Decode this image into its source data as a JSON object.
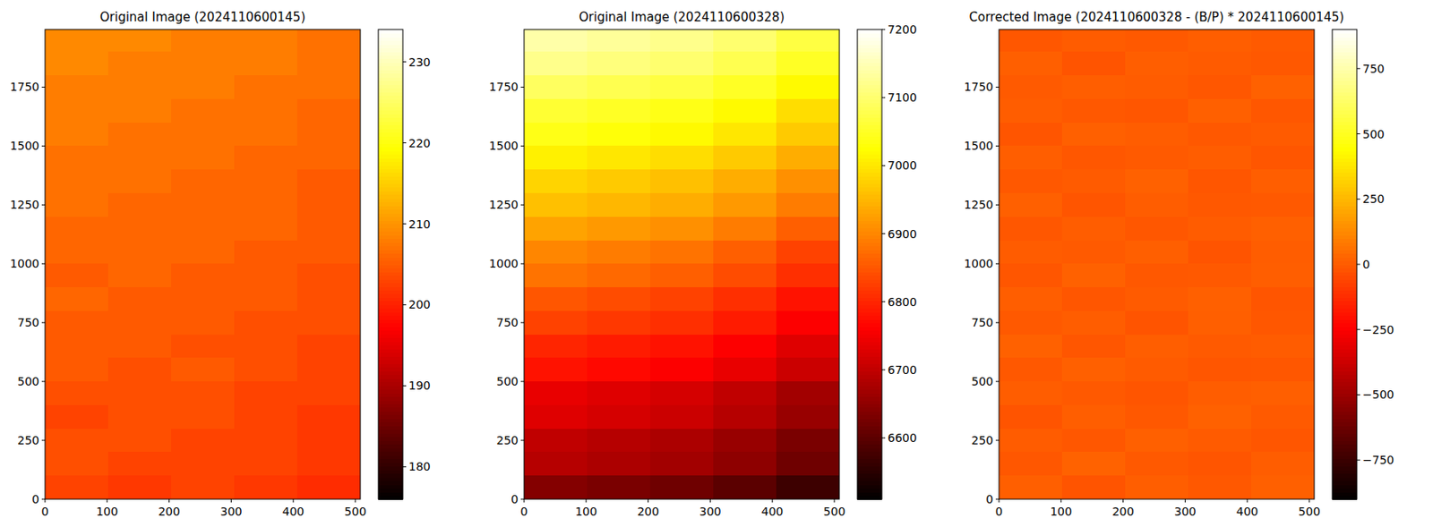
{
  "chart_data": [
    {
      "type": "heatmap",
      "title": "Original Image (2024110600145)",
      "color": "hot",
      "xlim": [
        0,
        508
      ],
      "ylim": [
        0,
        1995
      ],
      "xticks": [
        0,
        100,
        200,
        300,
        400,
        500
      ],
      "yticks": [
        0,
        250,
        500,
        750,
        1000,
        1250,
        1500,
        1750
      ],
      "x_edges": [
        0,
        102,
        203,
        305,
        406,
        508
      ],
      "y_edges": [
        0,
        100,
        200,
        300,
        400,
        500,
        600,
        700,
        800,
        900,
        1000,
        1100,
        1200,
        1300,
        1400,
        1500,
        1600,
        1700,
        1800,
        1900,
        1995
      ],
      "cells": [
        [
          203,
          202,
          203,
          202,
          201
        ],
        [
          204,
          203,
          203,
          203,
          202
        ],
        [
          204,
          204,
          203,
          203,
          202
        ],
        [
          203,
          204,
          204,
          203,
          202
        ],
        [
          204,
          204,
          204,
          203,
          203
        ],
        [
          205,
          204,
          205,
          204,
          203
        ],
        [
          205,
          205,
          204,
          204,
          203
        ],
        [
          205,
          205,
          205,
          204,
          204
        ],
        [
          206,
          205,
          205,
          205,
          204
        ],
        [
          205,
          206,
          205,
          205,
          204
        ],
        [
          206,
          206,
          206,
          205,
          205
        ],
        [
          206,
          206,
          206,
          206,
          205
        ],
        [
          207,
          206,
          206,
          206,
          205
        ],
        [
          207,
          207,
          206,
          206,
          205
        ],
        [
          207,
          207,
          207,
          206,
          206
        ],
        [
          208,
          207,
          207,
          207,
          206
        ],
        [
          208,
          208,
          207,
          207,
          206
        ],
        [
          208,
          208,
          208,
          207,
          207
        ],
        [
          209,
          208,
          208,
          208,
          207
        ],
        [
          209,
          209,
          208,
          208,
          207
        ]
      ],
      "colorbar": {
        "range": [
          176,
          234
        ],
        "ticks": [
          180,
          190,
          200,
          210,
          220,
          230
        ]
      }
    },
    {
      "type": "heatmap",
      "title": "Original Image (2024110600328)",
      "color": "hot",
      "xlim": [
        0,
        508
      ],
      "ylim": [
        0,
        1995
      ],
      "xticks": [
        0,
        100,
        200,
        300,
        400,
        500
      ],
      "yticks": [
        0,
        250,
        500,
        750,
        1000,
        1250,
        1500,
        1750
      ],
      "x_edges": [
        0,
        102,
        203,
        305,
        406,
        508
      ],
      "y_edges": [
        0,
        100,
        200,
        300,
        400,
        500,
        600,
        700,
        800,
        900,
        1000,
        1100,
        1200,
        1300,
        1400,
        1500,
        1600,
        1700,
        1800,
        1900,
        1995
      ],
      "cells": [
        [
          6640,
          6630,
          6620,
          6600,
          6570
        ],
        [
          6690,
          6680,
          6670,
          6650,
          6620
        ],
        [
          6700,
          6690,
          6680,
          6660,
          6630
        ],
        [
          6730,
          6720,
          6710,
          6690,
          6660
        ],
        [
          6740,
          6730,
          6720,
          6700,
          6670
        ],
        [
          6780,
          6770,
          6760,
          6740,
          6710
        ],
        [
          6800,
          6790,
          6780,
          6760,
          6730
        ],
        [
          6830,
          6820,
          6810,
          6790,
          6760
        ],
        [
          6850,
          6840,
          6830,
          6810,
          6780
        ],
        [
          6880,
          6870,
          6860,
          6840,
          6810
        ],
        [
          6900,
          6890,
          6880,
          6860,
          6830
        ],
        [
          6930,
          6920,
          6910,
          6890,
          6860
        ],
        [
          6960,
          6950,
          6940,
          6920,
          6890
        ],
        [
          6980,
          6970,
          6960,
          6940,
          6910
        ],
        [
          7010,
          7000,
          6990,
          6970,
          6940
        ],
        [
          7040,
          7030,
          7020,
          7000,
          6970
        ],
        [
          7060,
          7050,
          7040,
          7020,
          6990
        ],
        [
          7090,
          7080,
          7070,
          7050,
          7020
        ],
        [
          7120,
          7110,
          7100,
          7080,
          7050
        ],
        [
          7140,
          7130,
          7120,
          7100,
          7070
        ]
      ],
      "colorbar": {
        "range": [
          6510,
          7200
        ],
        "ticks": [
          6600,
          6700,
          6800,
          6900,
          7000,
          7100,
          7200
        ]
      }
    },
    {
      "type": "heatmap",
      "title": "Corrected Image (2024110600328 - (B/P) * 2024110600145)",
      "color": "hot",
      "xlim": [
        0,
        508
      ],
      "ylim": [
        0,
        1995
      ],
      "xticks": [
        0,
        100,
        200,
        300,
        400,
        500
      ],
      "yticks": [
        0,
        250,
        500,
        750,
        1000,
        1250,
        1500,
        1750
      ],
      "x_edges": [
        0,
        102,
        203,
        305,
        406,
        508
      ],
      "y_edges": [
        0,
        100,
        200,
        300,
        400,
        500,
        600,
        700,
        800,
        900,
        1000,
        1100,
        1200,
        1300,
        1400,
        1500,
        1600,
        1700,
        1800,
        1900,
        1995
      ],
      "cells": [
        [
          12,
          -18,
          9,
          -6,
          15
        ],
        [
          -10,
          20,
          -3,
          -14,
          6
        ],
        [
          5,
          -8,
          16,
          2,
          -12
        ],
        [
          -16,
          11,
          -5,
          19,
          -2
        ],
        [
          8,
          -4,
          -15,
          7,
          13
        ],
        [
          -7,
          14,
          3,
          -11,
          -9
        ],
        [
          18,
          -13,
          10,
          -1,
          4
        ],
        [
          -3,
          6,
          -17,
          12,
          -8
        ],
        [
          9,
          -11,
          2,
          15,
          -14
        ],
        [
          -12,
          17,
          -6,
          -4,
          10
        ],
        [
          4,
          -2,
          13,
          -16,
          7
        ],
        [
          -9,
          8,
          -10,
          5,
          16
        ],
        [
          15,
          -15,
          6,
          -7,
          -3
        ],
        [
          -5,
          3,
          19,
          -12,
          11
        ],
        [
          11,
          -9,
          -2,
          8,
          -13
        ],
        [
          -14,
          16,
          7,
          -5,
          2
        ],
        [
          6,
          -6,
          -12,
          14,
          -10
        ],
        [
          -2,
          10,
          4,
          -9,
          17
        ],
        [
          13,
          -17,
          11,
          3,
          -6
        ],
        [
          -8,
          5,
          -4,
          10,
          -1
        ]
      ],
      "colorbar": {
        "range": [
          -900,
          900
        ],
        "ticks": [
          {
            "value": -750,
            "label": "−750"
          },
          {
            "value": -500,
            "label": "−500"
          },
          {
            "value": -250,
            "label": "−250"
          },
          0,
          250,
          500,
          750
        ]
      }
    }
  ]
}
